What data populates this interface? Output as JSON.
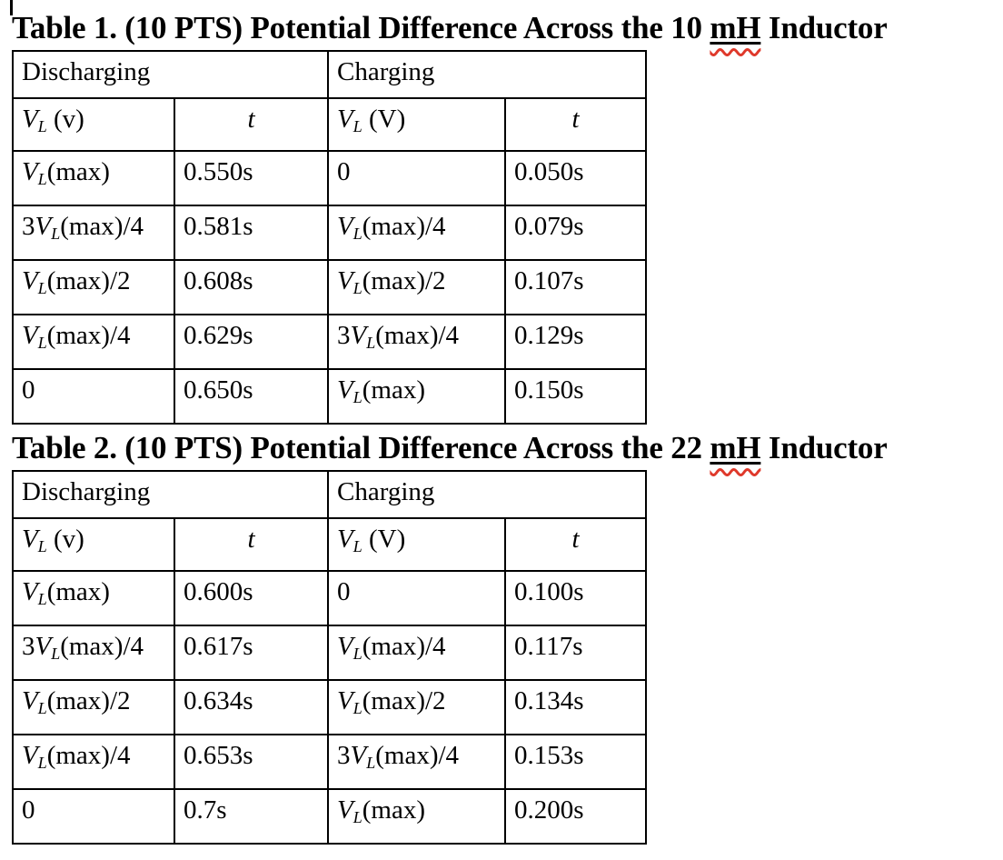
{
  "document": {
    "colors": {
      "text": "#000000",
      "background": "#ffffff",
      "spellcheck_squiggle": "#df392b",
      "table_border": "#000000"
    },
    "tables": [
      {
        "title": {
          "prefix": "Table 1. (10 PTS) Potential Difference Across the 10 ",
          "underlined_word": "mH",
          "suffix": " Inductor"
        },
        "group_headers": [
          "Discharging",
          "Charging"
        ],
        "column_headers": [
          "{V_L} (v)",
          "{t}",
          "{V_L} (V)",
          "{t}"
        ],
        "rows": [
          [
            "{V_L}(max)",
            "0.550s",
            "0",
            "0.050s"
          ],
          [
            "3{V_L}(max)/4",
            "0.581s",
            "{V_L}(max)/4",
            "0.079s"
          ],
          [
            "{V_L}(max)/2",
            "0.608s",
            "{V_L}(max)/2",
            "0.107s"
          ],
          [
            "{V_L}(max)/4",
            "0.629s",
            "3{V_L}(max)/4",
            "0.129s"
          ],
          [
            "0",
            "0.650s",
            "{V_L}(max)",
            "0.150s"
          ]
        ]
      },
      {
        "title": {
          "prefix": "Table 2. (10 PTS) Potential Difference Across the 22 ",
          "underlined_word": "mH",
          "suffix": " Inductor"
        },
        "group_headers": [
          "Discharging",
          "Charging"
        ],
        "column_headers": [
          "{V_L} (v)",
          "{t}",
          "{V_L} (V)",
          "{t}"
        ],
        "rows": [
          [
            "{V_L}(max)",
            "0.600s",
            "0",
            "0.100s"
          ],
          [
            "3{V_L}(max)/4",
            "0.617s",
            "{V_L}(max)/4",
            "0.117s"
          ],
          [
            "{V_L}(max)/2",
            "0.634s",
            "{V_L}(max)/2",
            "0.134s"
          ],
          [
            "{V_L}(max)/4",
            "0.653s",
            "3{V_L}(max)/4",
            "0.153s"
          ],
          [
            "0",
            "0.7s",
            "{V_L}(max)",
            "0.200s"
          ]
        ]
      }
    ]
  }
}
